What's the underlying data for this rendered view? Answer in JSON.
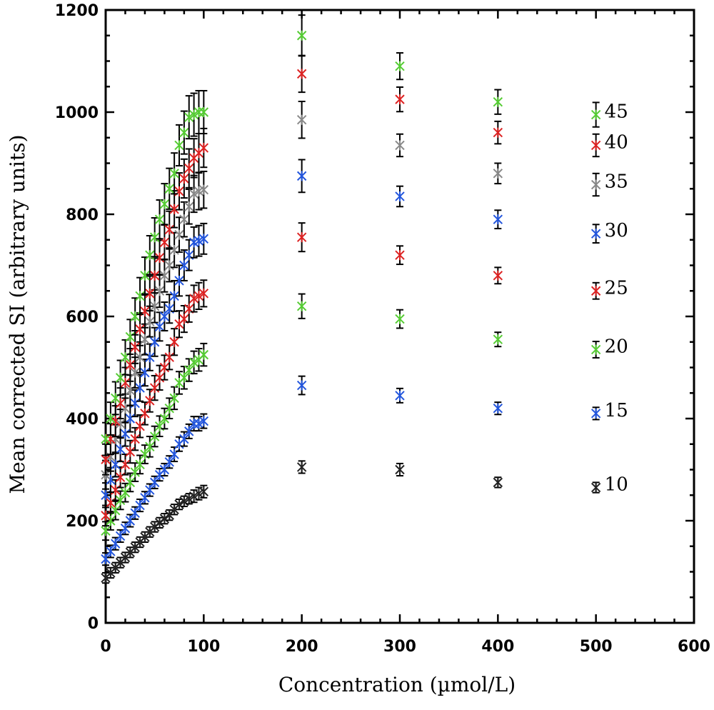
{
  "chart_data": {
    "type": "scatter",
    "title": "",
    "xlabel": "Concentration (µmol/L)",
    "ylabel": "Mean  corrected SI (arbitrary units)",
    "xlim": [
      0,
      600
    ],
    "ylim": [
      0,
      1200
    ],
    "xticks": [
      "0",
      "100",
      "200",
      "300",
      "400",
      "500",
      "600"
    ],
    "yticks": [
      "0",
      "200",
      "400",
      "600",
      "800",
      "1000",
      "1200"
    ],
    "grid": false,
    "legend": "labels beside the points at x = 500",
    "error_bars": true,
    "series": [
      {
        "name": "10",
        "color": "#222222",
        "x": [
          0,
          5,
          10,
          15,
          20,
          25,
          30,
          35,
          40,
          45,
          50,
          55,
          60,
          65,
          70,
          75,
          80,
          85,
          90,
          95,
          100,
          200,
          300,
          400,
          500
        ],
        "y": [
          88,
          98,
          108,
          118,
          128,
          138,
          148,
          158,
          168,
          178,
          188,
          196,
          204,
          211,
          222,
          232,
          238,
          243,
          248,
          253,
          257,
          305,
          300,
          275,
          265
        ],
        "err": [
          10,
          10,
          10,
          10,
          10,
          10,
          10,
          10,
          10,
          10,
          10,
          10,
          10,
          10,
          10,
          10,
          10,
          10,
          12,
          12,
          12,
          12,
          12,
          10,
          10
        ]
      },
      {
        "name": "15",
        "color": "#2255dd",
        "x": [
          0,
          5,
          10,
          15,
          20,
          25,
          30,
          35,
          40,
          45,
          50,
          55,
          60,
          65,
          70,
          75,
          80,
          85,
          90,
          95,
          100,
          200,
          300,
          400,
          500
        ],
        "y": [
          125,
          140,
          155,
          170,
          185,
          200,
          215,
          230,
          245,
          260,
          275,
          290,
          300,
          315,
          330,
          350,
          360,
          375,
          390,
          390,
          395,
          465,
          445,
          420,
          410
        ],
        "err": [
          12,
          12,
          12,
          12,
          12,
          12,
          12,
          12,
          12,
          12,
          12,
          12,
          12,
          12,
          14,
          14,
          14,
          14,
          14,
          14,
          14,
          18,
          14,
          12,
          12
        ]
      },
      {
        "name": "20",
        "color": "#55cc33",
        "x": [
          0,
          5,
          10,
          15,
          20,
          25,
          30,
          35,
          40,
          45,
          50,
          55,
          60,
          65,
          70,
          75,
          80,
          85,
          90,
          95,
          100,
          200,
          300,
          400,
          500
        ],
        "y": [
          180,
          200,
          220,
          240,
          255,
          275,
          295,
          310,
          330,
          345,
          365,
          385,
          400,
          420,
          440,
          470,
          480,
          495,
          510,
          515,
          525,
          620,
          595,
          555,
          535
        ],
        "err": [
          18,
          18,
          18,
          18,
          18,
          18,
          18,
          18,
          18,
          20,
          20,
          20,
          20,
          20,
          22,
          22,
          22,
          22,
          22,
          22,
          22,
          24,
          18,
          14,
          16
        ]
      },
      {
        "name": "25",
        "color": "#dd2222",
        "x": [
          0,
          5,
          10,
          15,
          20,
          25,
          30,
          35,
          40,
          45,
          50,
          55,
          60,
          65,
          70,
          75,
          80,
          85,
          90,
          95,
          100,
          200,
          300,
          400,
          500
        ],
        "y": [
          210,
          235,
          260,
          285,
          310,
          335,
          360,
          385,
          410,
          435,
          460,
          480,
          500,
          520,
          550,
          585,
          595,
          615,
          635,
          640,
          645,
          755,
          720,
          680,
          650
        ],
        "err": [
          20,
          20,
          20,
          20,
          20,
          22,
          22,
          22,
          22,
          22,
          24,
          24,
          24,
          24,
          26,
          26,
          26,
          26,
          26,
          26,
          26,
          28,
          18,
          16,
          16
        ]
      },
      {
        "name": "30",
        "color": "#2255dd",
        "x": [
          0,
          5,
          10,
          15,
          20,
          25,
          30,
          35,
          40,
          45,
          50,
          55,
          60,
          65,
          70,
          75,
          80,
          85,
          90,
          95,
          100,
          200,
          300,
          400,
          500
        ],
        "y": [
          250,
          280,
          310,
          340,
          370,
          400,
          430,
          460,
          490,
          520,
          550,
          580,
          600,
          615,
          640,
          670,
          700,
          720,
          745,
          748,
          752,
          875,
          835,
          790,
          762
        ],
        "err": [
          24,
          24,
          24,
          24,
          24,
          26,
          26,
          26,
          26,
          26,
          28,
          28,
          28,
          28,
          30,
          30,
          30,
          30,
          30,
          30,
          30,
          32,
          20,
          18,
          18
        ]
      },
      {
        "name": "35",
        "color": "#888888",
        "x": [
          0,
          5,
          10,
          15,
          20,
          25,
          30,
          35,
          40,
          45,
          50,
          55,
          60,
          65,
          70,
          75,
          80,
          85,
          90,
          95,
          100,
          200,
          300,
          400,
          500
        ],
        "y": [
          290,
          325,
          360,
          390,
          420,
          455,
          490,
          520,
          555,
          590,
          620,
          650,
          680,
          700,
          730,
          760,
          790,
          815,
          840,
          845,
          848,
          985,
          935,
          880,
          858
        ],
        "err": [
          28,
          28,
          28,
          28,
          28,
          30,
          30,
          30,
          30,
          30,
          32,
          32,
          32,
          32,
          34,
          34,
          34,
          34,
          36,
          36,
          36,
          36,
          22,
          20,
          22
        ]
      },
      {
        "name": "40",
        "color": "#dd2222",
        "x": [
          0,
          5,
          10,
          15,
          20,
          25,
          30,
          35,
          40,
          45,
          50,
          55,
          60,
          65,
          70,
          75,
          80,
          85,
          90,
          95,
          100,
          200,
          300,
          400,
          500
        ],
        "y": [
          320,
          360,
          395,
          430,
          470,
          505,
          540,
          575,
          610,
          645,
          680,
          715,
          745,
          770,
          810,
          845,
          870,
          890,
          910,
          920,
          930,
          1075,
          1025,
          960,
          935
        ],
        "err": [
          30,
          30,
          30,
          30,
          30,
          32,
          32,
          32,
          32,
          34,
          34,
          34,
          34,
          36,
          36,
          36,
          38,
          38,
          38,
          38,
          38,
          36,
          24,
          22,
          22
        ]
      },
      {
        "name": "45",
        "color": "#55cc33",
        "x": [
          0,
          5,
          10,
          15,
          20,
          25,
          30,
          35,
          40,
          45,
          50,
          55,
          60,
          65,
          70,
          75,
          80,
          85,
          90,
          95,
          100,
          200,
          300,
          400,
          500
        ],
        "y": [
          360,
          400,
          440,
          480,
          520,
          560,
          600,
          640,
          680,
          720,
          755,
          790,
          820,
          850,
          880,
          935,
          960,
          990,
          995,
          1000,
          1000,
          1150,
          1090,
          1020,
          995
        ],
        "err": [
          32,
          32,
          32,
          34,
          34,
          34,
          36,
          36,
          36,
          38,
          38,
          38,
          40,
          40,
          40,
          40,
          42,
          42,
          42,
          42,
          42,
          40,
          26,
          24,
          24
        ]
      }
    ]
  }
}
